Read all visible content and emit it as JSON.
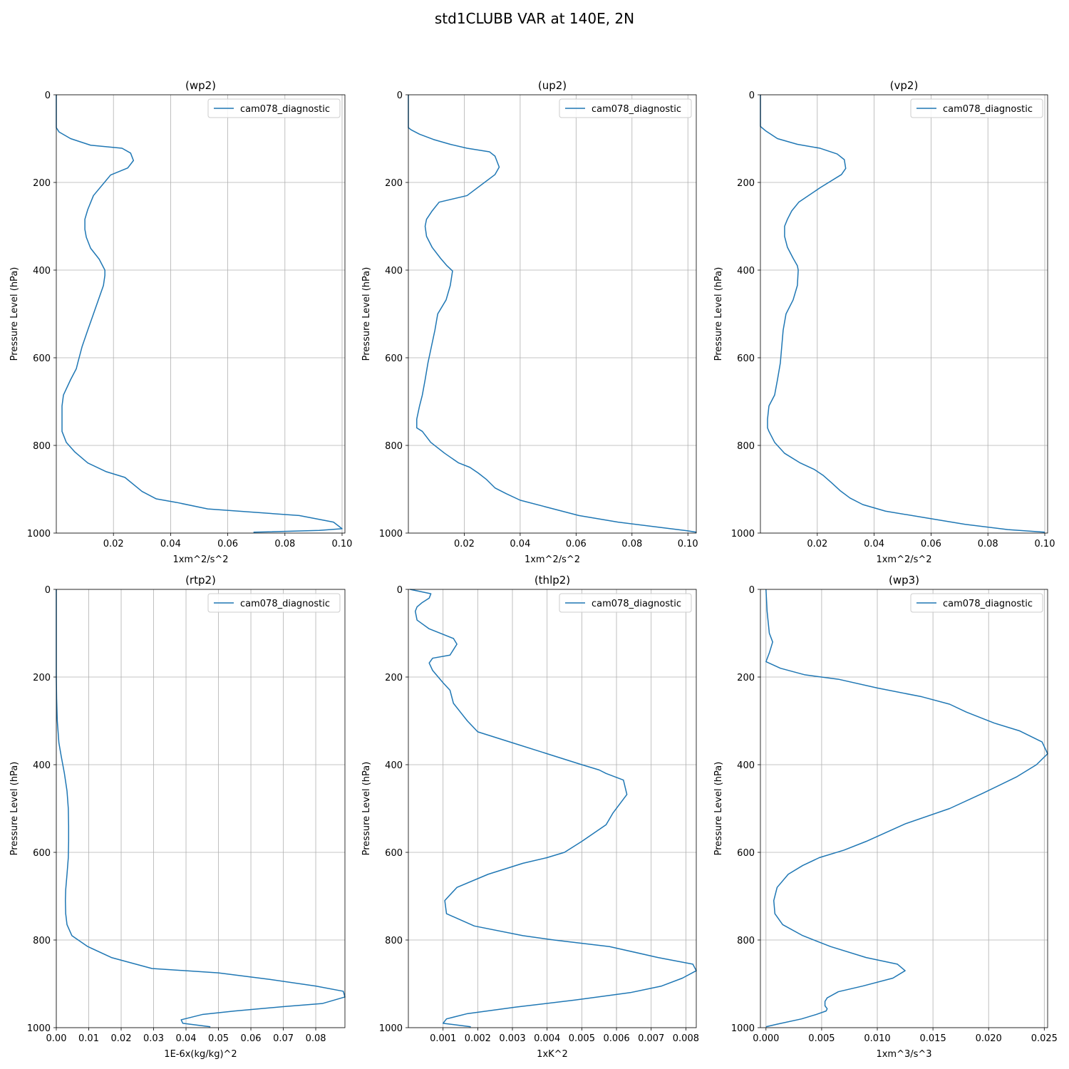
{
  "figure_title": "std1CLUBB VAR at 140E, 2N",
  "colors": {
    "series": "#1f77b4",
    "grid": "#b0b0b0",
    "axes": "#000000",
    "legend_border": "#cccccc"
  },
  "chart_data": [
    {
      "type": "line",
      "title": "(wp2)",
      "xlabel": "1xm^2/s^2",
      "ylabel": "Pressure Level (hPa)",
      "xlim": [
        0,
        0.101
      ],
      "ylim": [
        1000,
        0
      ],
      "xticks": [
        0.02,
        0.04,
        0.06,
        0.08,
        0.1
      ],
      "xtick_labels": [
        "0.02",
        "0.04",
        "0.06",
        "0.08",
        "0.10"
      ],
      "yticks": [
        0,
        200,
        400,
        600,
        800,
        1000
      ],
      "ytick_labels": [
        "0",
        "200",
        "400",
        "600",
        "800",
        "1000"
      ],
      "grid": true,
      "legend": "top-right",
      "series": [
        {
          "name": "cam078_diagnostic",
          "x": [
            0,
            0,
            0.001,
            0.005,
            0.012,
            0.023,
            0.026,
            0.027,
            0.025,
            0.019,
            0.013,
            0.011,
            0.01,
            0.01,
            0.0105,
            0.012,
            0.015,
            0.017,
            0.017,
            0.0165,
            0.013,
            0.011,
            0.009,
            0.0075,
            0.007,
            0.005,
            0.0025,
            0.002,
            0.002,
            0.002,
            0.0035,
            0.0065,
            0.011,
            0.0175,
            0.024,
            0.03,
            0.035,
            0.042,
            0.053,
            0.085,
            0.097,
            0.1,
            0.092,
            0.069
          ],
          "y": [
            0,
            75,
            85,
            100,
            115,
            122,
            133,
            150,
            167,
            183,
            230,
            262,
            284,
            307,
            325,
            350,
            375,
            400,
            412,
            435,
            500,
            537,
            575,
            612,
            625,
            650,
            685,
            710,
            740,
            768,
            793,
            815,
            840,
            860,
            873,
            905,
            922,
            930,
            945,
            960,
            975,
            990,
            994,
            998
          ]
        }
      ]
    },
    {
      "type": "line",
      "title": "(up2)",
      "xlabel": "1xm^2/s^2",
      "ylabel": "Pressure Level (hPa)",
      "xlim": [
        0,
        0.103
      ],
      "ylim": [
        1000,
        0
      ],
      "xticks": [
        0.02,
        0.04,
        0.06,
        0.08,
        0.1
      ],
      "xtick_labels": [
        "0.02",
        "0.04",
        "0.06",
        "0.08",
        "0.10"
      ],
      "yticks": [
        0,
        200,
        400,
        600,
        800,
        1000
      ],
      "ytick_labels": [
        "0",
        "200",
        "400",
        "600",
        "800",
        "1000"
      ],
      "grid": true,
      "legend": "top-right",
      "series": [
        {
          "name": "cam078_diagnostic",
          "x": [
            0,
            0,
            0.001,
            0.004,
            0.009,
            0.015,
            0.021,
            0.029,
            0.031,
            0.0325,
            0.031,
            0.021,
            0.011,
            0.0085,
            0.0065,
            0.006,
            0.0065,
            0.0085,
            0.0115,
            0.0138,
            0.0158,
            0.015,
            0.0135,
            0.0105,
            0.0095,
            0.007,
            0.006,
            0.005,
            0.004,
            0.003,
            0.003,
            0.003,
            0.005,
            0.008,
            0.013,
            0.018,
            0.022,
            0.025,
            0.028,
            0.031,
            0.035,
            0.04,
            0.049,
            0.061,
            0.075,
            0.09,
            0.1,
            0.103
          ],
          "y": [
            0,
            75,
            80,
            90,
            102,
            113,
            122,
            130,
            140,
            165,
            182,
            230,
            245,
            265,
            284,
            300,
            323,
            348,
            373,
            390,
            402,
            435,
            468,
            500,
            537,
            612,
            650,
            685,
            710,
            740,
            748,
            760,
            768,
            793,
            818,
            840,
            850,
            863,
            878,
            897,
            910,
            925,
            940,
            960,
            975,
            987,
            995,
            998
          ]
        }
      ]
    },
    {
      "type": "line",
      "title": "(vp2)",
      "xlabel": "1xm^2/s^2",
      "ylabel": "Pressure Level (hPa)",
      "xlim": [
        0,
        0.101
      ],
      "ylim": [
        1000,
        0
      ],
      "xticks": [
        0.02,
        0.04,
        0.06,
        0.08,
        0.1
      ],
      "xtick_labels": [
        "0.02",
        "0.04",
        "0.06",
        "0.08",
        "0.10"
      ],
      "yticks": [
        0,
        200,
        400,
        600,
        800,
        1000
      ],
      "ytick_labels": [
        "0",
        "200",
        "400",
        "600",
        "800",
        "1000"
      ],
      "grid": true,
      "legend": "top-right",
      "series": [
        {
          "name": "cam078_diagnostic",
          "x": [
            0,
            0,
            0.0005,
            0.002,
            0.006,
            0.013,
            0.021,
            0.027,
            0.0295,
            0.03,
            0.0285,
            0.021,
            0.0135,
            0.011,
            0.0095,
            0.0085,
            0.0085,
            0.0095,
            0.0115,
            0.013,
            0.0133,
            0.013,
            0.0115,
            0.009,
            0.008,
            0.007,
            0.006,
            0.005,
            0.003,
            0.0025,
            0.0025,
            0.0025,
            0.003,
            0.005,
            0.0085,
            0.014,
            0.019,
            0.022,
            0.025,
            0.028,
            0.0315,
            0.036,
            0.044,
            0.058,
            0.072,
            0.087,
            0.1
          ],
          "y": [
            0,
            72,
            75,
            83,
            100,
            113,
            122,
            135,
            148,
            168,
            182,
            212,
            245,
            265,
            284,
            300,
            323,
            348,
            373,
            390,
            400,
            435,
            468,
            500,
            537,
            612,
            650,
            685,
            710,
            740,
            748,
            760,
            768,
            793,
            818,
            840,
            855,
            868,
            885,
            903,
            920,
            935,
            950,
            965,
            980,
            992,
            998
          ]
        }
      ]
    },
    {
      "type": "line",
      "title": "(rtp2)",
      "xlabel": "1E-6x(kg/kg)^2",
      "ylabel": "Pressure Level (hPa)",
      "xlim": [
        0,
        0.089
      ],
      "ylim": [
        1000,
        0
      ],
      "xticks": [
        0,
        0.01,
        0.02,
        0.03,
        0.04,
        0.05,
        0.06,
        0.07,
        0.08
      ],
      "xtick_labels": [
        "0.00",
        "0.01",
        "0.02",
        "0.03",
        "0.04",
        "0.05",
        "0.06",
        "0.07",
        "0.08"
      ],
      "yticks": [
        0,
        200,
        400,
        600,
        800,
        1000
      ],
      "ytick_labels": [
        "0",
        "200",
        "400",
        "600",
        "800",
        "1000"
      ],
      "grid": true,
      "legend": "top-right",
      "series": [
        {
          "name": "cam078_diagnostic",
          "x": [
            0,
            0,
            0.0001,
            0.0003,
            0.0008,
            0.0015,
            0.0025,
            0.0033,
            0.0037,
            0.0038,
            0.0038,
            0.0037,
            0.0033,
            0.0029,
            0.0028,
            0.0029,
            0.0033,
            0.0048,
            0.0097,
            0.017,
            0.0295,
            0.05,
            0.066,
            0.08,
            0.0885,
            0.089,
            0.082,
            0.07,
            0.055,
            0.045,
            0.0385,
            0.039,
            0.0475
          ],
          "y": [
            0,
            200,
            250,
            300,
            350,
            380,
            420,
            460,
            500,
            540,
            575,
            612,
            650,
            685,
            710,
            740,
            765,
            790,
            815,
            840,
            865,
            875,
            890,
            905,
            917,
            930,
            945,
            952,
            962,
            970,
            982,
            990,
            998
          ]
        }
      ]
    },
    {
      "type": "line",
      "title": "(thlp2)",
      "xlabel": "1xK^2",
      "ylabel": "Pressure Level (hPa)",
      "xlim": [
        0,
        0.0083
      ],
      "ylim": [
        1000,
        0
      ],
      "xticks": [
        0.001,
        0.002,
        0.003,
        0.004,
        0.005,
        0.006,
        0.007,
        0.008
      ],
      "xtick_labels": [
        "0.001",
        "0.002",
        "0.003",
        "0.004",
        "0.005",
        "0.006",
        "0.007",
        "0.008"
      ],
      "yticks": [
        0,
        200,
        400,
        600,
        800,
        1000
      ],
      "ytick_labels": [
        "0",
        "200",
        "400",
        "600",
        "800",
        "1000"
      ],
      "grid": true,
      "legend": "top-right",
      "series": [
        {
          "name": "cam078_diagnostic",
          "x": [
            5e-05,
            0.00065,
            0.0006,
            0.0004,
            0.00025,
            0.0002,
            0.00025,
            0.0006,
            0.0013,
            0.0014,
            0.0012,
            0.0007,
            0.0006,
            0.0007,
            0.001,
            0.0012,
            0.0013,
            0.0015,
            0.0017,
            0.002,
            0.003,
            0.004,
            0.005,
            0.0055,
            0.0057,
            0.0062,
            0.0063,
            0.0059,
            0.0057,
            0.005,
            0.0045,
            0.004,
            0.0033,
            0.0023,
            0.0014,
            0.00105,
            0.0011,
            0.0019,
            0.0033,
            0.0042,
            0.0058,
            0.0072,
            0.0082,
            0.0083,
            0.0079,
            0.0073,
            0.0064,
            0.0048,
            0.0031,
            0.0017,
            0.0011,
            0.001,
            0.0018
          ],
          "y": [
            0,
            10,
            20,
            30,
            40,
            50,
            70,
            90,
            112,
            125,
            150,
            157,
            168,
            185,
            213,
            230,
            260,
            280,
            300,
            325,
            350,
            375,
            400,
            412,
            420,
            435,
            468,
            510,
            537,
            575,
            600,
            612,
            625,
            650,
            680,
            710,
            740,
            768,
            790,
            800,
            815,
            840,
            855,
            870,
            887,
            905,
            920,
            937,
            953,
            968,
            980,
            990,
            998
          ]
        }
      ]
    },
    {
      "type": "line",
      "title": "(wp3)",
      "xlabel": "1xm^3/s^3",
      "ylabel": "Pressure Level (hPa)",
      "xlim": [
        -0.0005,
        0.0253
      ],
      "ylim": [
        1000,
        0
      ],
      "xticks": [
        0,
        0.005,
        0.01,
        0.015,
        0.02,
        0.025
      ],
      "xtick_labels": [
        "0.000",
        "0.005",
        "0.010",
        "0.015",
        "0.020",
        "0.025"
      ],
      "yticks": [
        0,
        200,
        400,
        600,
        800,
        1000
      ],
      "ytick_labels": [
        "0",
        "200",
        "400",
        "600",
        "800",
        "1000"
      ],
      "grid": true,
      "legend": "top-right",
      "series": [
        {
          "name": "cam078_diagnostic",
          "x": [
            0,
            0.0001,
            0.0002,
            0.0003,
            0.0006,
            0.0003,
            0,
            0.0013,
            0.0035,
            0.0065,
            0.01,
            0.014,
            0.0165,
            0.018,
            0.0205,
            0.0228,
            0.0248,
            0.0253,
            0.0243,
            0.0225,
            0.0195,
            0.0165,
            0.0125,
            0.009,
            0.007,
            0.0048,
            0.0033,
            0.002,
            0.001,
            0.0007,
            0.0008,
            0.0015,
            0.0033,
            0.0058,
            0.009,
            0.0118,
            0.0125,
            0.0114,
            0.0087,
            0.0065,
            0.0055,
            0.0053,
            0.0053,
            0.0055,
            0.0054,
            0.0045,
            0.0032,
            0.001,
            0
          ],
          "y": [
            0,
            50,
            75,
            100,
            120,
            145,
            165,
            180,
            195,
            205,
            225,
            245,
            262,
            280,
            305,
            323,
            348,
            375,
            400,
            428,
            465,
            500,
            535,
            575,
            595,
            612,
            630,
            650,
            680,
            710,
            740,
            765,
            790,
            815,
            840,
            855,
            870,
            887,
            905,
            918,
            932,
            940,
            950,
            957,
            962,
            970,
            980,
            992,
            998
          ]
        }
      ]
    }
  ]
}
